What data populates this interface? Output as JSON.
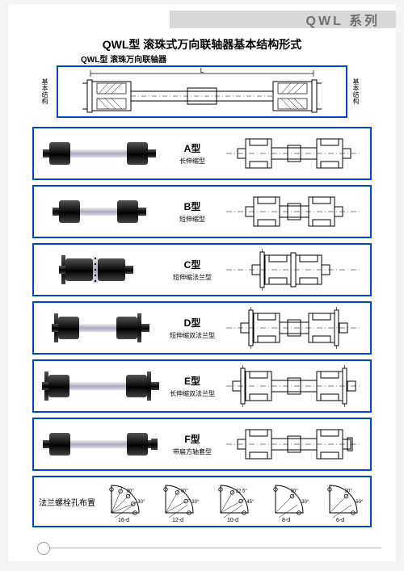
{
  "header": {
    "series_label": "QWL 系列"
  },
  "title": "QWL型  滚珠式万向联轴器基本结构形式",
  "subtitle": "QWL型 滚珠万向联轴器",
  "side_label": "基本结构",
  "colors": {
    "frame_blue": "#0047d0",
    "header_gray": "#d8d8d8",
    "header_text": "#707070",
    "text_black": "#000000",
    "line_black": "#000000",
    "steel_light": "#cfd3d6",
    "steel_dark": "#2a2a2a",
    "bg_white": "#ffffff"
  },
  "basic_structure": {
    "dim_label": "L",
    "flange_w": 8,
    "hub_w": 40,
    "shaft_w": 180,
    "height": 34
  },
  "types": [
    {
      "id": "A",
      "type_label": "A型",
      "desc": "长伸缩型",
      "photo": {
        "kind": "long",
        "flanges": 0
      },
      "drawing": {
        "kind": "long",
        "flanges": 0
      }
    },
    {
      "id": "B",
      "type_label": "B型",
      "desc": "短伸缩型",
      "photo": {
        "kind": "short",
        "flanges": 0
      },
      "drawing": {
        "kind": "short",
        "flanges": 0
      }
    },
    {
      "id": "C",
      "type_label": "C型",
      "desc": "短伸缩法兰型",
      "photo": {
        "kind": "compact",
        "flanges": 1
      },
      "drawing": {
        "kind": "compact",
        "flanges": 1
      }
    },
    {
      "id": "D",
      "type_label": "D型",
      "desc": "短伸缩双法兰型",
      "photo": {
        "kind": "short",
        "flanges": 2
      },
      "drawing": {
        "kind": "short",
        "flanges": 2
      }
    },
    {
      "id": "E",
      "type_label": "E型",
      "desc": "长伸缩双法兰型",
      "photo": {
        "kind": "long",
        "flanges": 2
      },
      "drawing": {
        "kind": "long",
        "flanges": 2
      }
    },
    {
      "id": "F",
      "type_label": "F型",
      "desc": "带扁方轴套型",
      "photo": {
        "kind": "long",
        "flanges": 0,
        "square_end": true
      },
      "drawing": {
        "kind": "long",
        "flanges": 0,
        "square_end": true
      }
    }
  ],
  "bolt_section": {
    "label": "法兰螺栓孔布置",
    "patterns": [
      {
        "holes": 16,
        "label": "16-d",
        "angles": [
          "30°",
          "30°"
        ]
      },
      {
        "holes": 12,
        "label": "12-d",
        "angles": [
          "30°",
          "30°"
        ]
      },
      {
        "holes": 10,
        "label": "10-d",
        "angles": [
          "22.5°",
          "45°"
        ]
      },
      {
        "holes": 8,
        "label": "8-d",
        "angles": [
          "30°",
          "30°"
        ]
      },
      {
        "holes": 6,
        "label": "6-d",
        "angles": [
          "30°",
          "60°"
        ]
      }
    ]
  }
}
